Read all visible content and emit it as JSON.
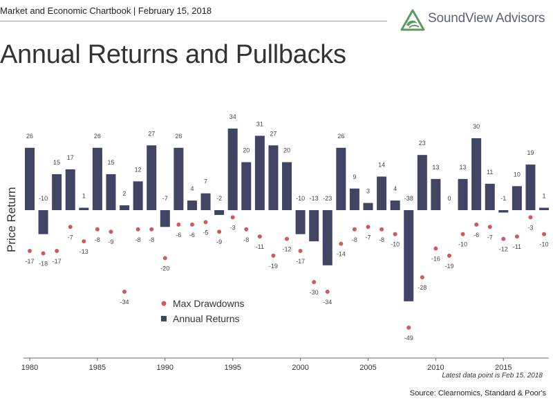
{
  "header": {
    "chartbook_label": "Market and Economic Chartbook | February 15, 2018"
  },
  "logo": {
    "name": "SoundView Advisors",
    "mark_color": "#5a9a5e",
    "text_color": "#5b6474"
  },
  "chart_data": {
    "type": "bar",
    "title": "Annual Returns and Pullbacks",
    "ylabel": "Price Return",
    "x": [
      1980,
      1981,
      1982,
      1983,
      1984,
      1985,
      1986,
      1987,
      1988,
      1989,
      1990,
      1991,
      1992,
      1993,
      1994,
      1995,
      1996,
      1997,
      1998,
      1999,
      2000,
      2001,
      2002,
      2003,
      2004,
      2005,
      2006,
      2007,
      2008,
      2009,
      2010,
      2011,
      2012,
      2013,
      2014,
      2015,
      2016,
      2017,
      2018
    ],
    "x_ticks": [
      "1980",
      "1985",
      "1990",
      "1995",
      "2000",
      "2005",
      "2010",
      "2015"
    ],
    "x_tick_values": [
      1980,
      1985,
      1990,
      1995,
      2000,
      2005,
      2010,
      2015
    ],
    "series": [
      {
        "name": "Annual Returns",
        "type": "bar",
        "color": "#3f4563",
        "values": [
          26,
          -10,
          15,
          17,
          1,
          26,
          15,
          2,
          12,
          27,
          -7,
          26,
          4,
          7,
          -2,
          34,
          20,
          31,
          27,
          20,
          -10,
          -13,
          -23,
          26,
          9,
          3,
          14,
          4,
          -38,
          23,
          13,
          0,
          13,
          30,
          11,
          -1,
          10,
          19,
          1
        ]
      },
      {
        "name": "Max Drawdowns",
        "type": "scatter",
        "color": "#d05a5a",
        "values": [
          -17,
          -18,
          -17,
          -7,
          -13,
          -8,
          -9,
          -34,
          -8,
          -8,
          -20,
          -6,
          -6,
          -5,
          -9,
          -3,
          -8,
          -11,
          -19,
          -12,
          -17,
          -30,
          -34,
          -14,
          -8,
          -7,
          -8,
          -10,
          -49,
          -28,
          -16,
          -19,
          -10,
          -6,
          -7,
          -12,
          -11,
          -3,
          -10
        ]
      }
    ],
    "ylim": [
      -62,
      40
    ],
    "grid": false,
    "legend_position": "bottom-center"
  },
  "footnote": "Latest data point is Feb 15, 2018",
  "source": "Source: Clearnomics, Standard & Poor's"
}
